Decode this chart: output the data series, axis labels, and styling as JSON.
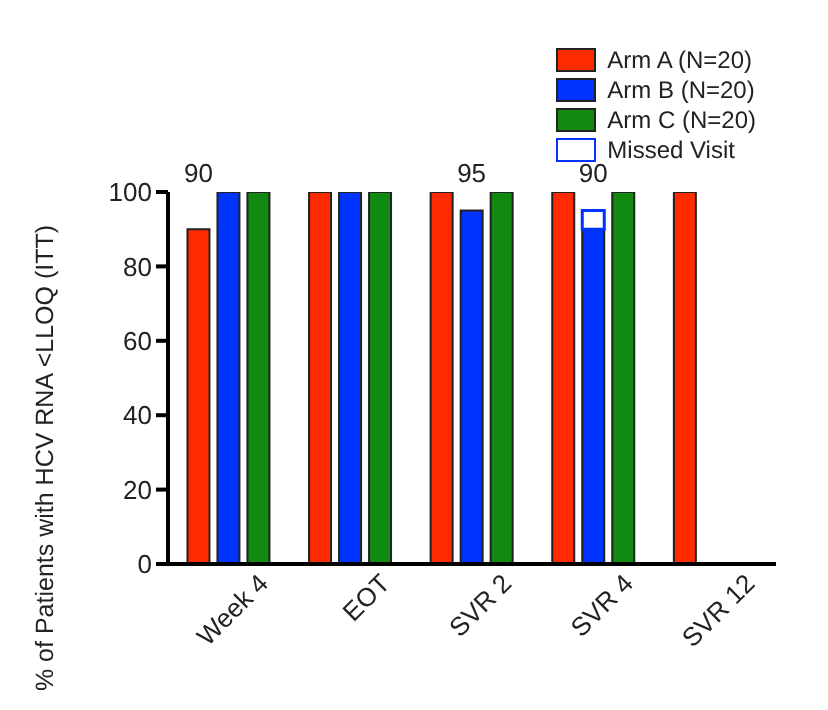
{
  "chart_data": {
    "type": "bar",
    "ylabel": "% of Patients with HCV RNA <LLOQ (ITT)",
    "categories": [
      "Week 4",
      "EOT",
      "SVR 2",
      "SVR 4",
      "SVR 12"
    ],
    "series": [
      {
        "name": "Arm A (N=20)",
        "color": "#ff2a00",
        "values": [
          90,
          100,
          100,
          100,
          100
        ],
        "value_labels": [
          "90",
          null,
          null,
          null,
          null
        ]
      },
      {
        "name": "Arm B (N=20)",
        "color": "#0033ff",
        "values": [
          100,
          100,
          95,
          90,
          null
        ],
        "value_labels": [
          null,
          null,
          "95",
          "90",
          null
        ]
      },
      {
        "name": "Arm C (N=20)",
        "color": "#108a10",
        "values": [
          100,
          100,
          100,
          100,
          null
        ]
      },
      {
        "name": "Missed Visit",
        "color": "#ffffff",
        "values": [
          null,
          null,
          null,
          5,
          null
        ],
        "base": [
          null,
          null,
          null,
          90,
          null
        ]
      }
    ],
    "ylim": [
      0,
      100
    ],
    "yticks": [
      0,
      20,
      40,
      60,
      80,
      100
    ],
    "grid": false,
    "legend": "top right"
  }
}
